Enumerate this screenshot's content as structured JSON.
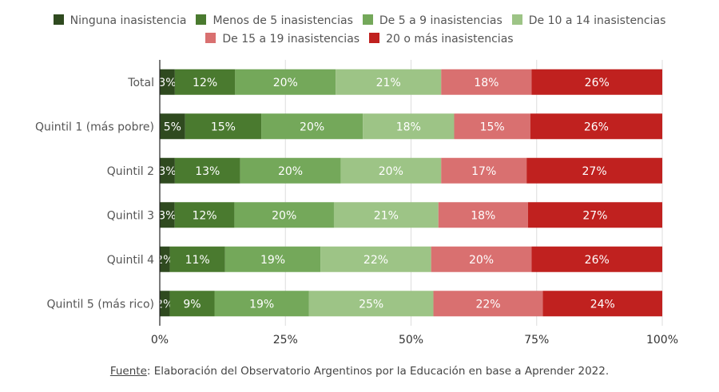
{
  "chart_data": {
    "type": "bar",
    "orientation": "horizontal",
    "stacked": "percent",
    "categories": [
      "Total",
      "Quintil 1 (más pobre)",
      "Quintil 2",
      "Quintil 3",
      "Quintil 4",
      "Quintil 5 (más rico)"
    ],
    "series": [
      {
        "name": "Ninguna inasistencia",
        "color": "#2f4a1f",
        "values": [
          3,
          5,
          3,
          3,
          2,
          2
        ]
      },
      {
        "name": "Menos de 5 inasistencias",
        "color": "#4a7a2f",
        "values": [
          12,
          15,
          13,
          12,
          11,
          9
        ]
      },
      {
        "name": "De 5 a 9 inasistencias",
        "color": "#74a85a",
        "values": [
          20,
          20,
          20,
          20,
          19,
          19
        ]
      },
      {
        "name": "De 10 a 14 inasistencias",
        "color": "#9dc486",
        "values": [
          21,
          18,
          20,
          21,
          22,
          25
        ]
      },
      {
        "name": "De 15 a 19 inasistencias",
        "color": "#d97070",
        "values": [
          18,
          15,
          17,
          18,
          20,
          22
        ]
      },
      {
        "name": "20 o más inasistencias",
        "color": "#c0211f",
        "values": [
          26,
          26,
          27,
          27,
          26,
          24
        ]
      }
    ],
    "xlim": [
      0,
      100
    ],
    "x_ticks": [
      "0%",
      "25%",
      "50%",
      "75%",
      "100%"
    ],
    "grid": true,
    "legend_position": "top",
    "xlabel": "",
    "ylabel": ""
  },
  "source": {
    "label": "Fuente",
    "text": ": Elaboración del Observatorio Argentinos por la Educación en base a Aprender 2022."
  }
}
